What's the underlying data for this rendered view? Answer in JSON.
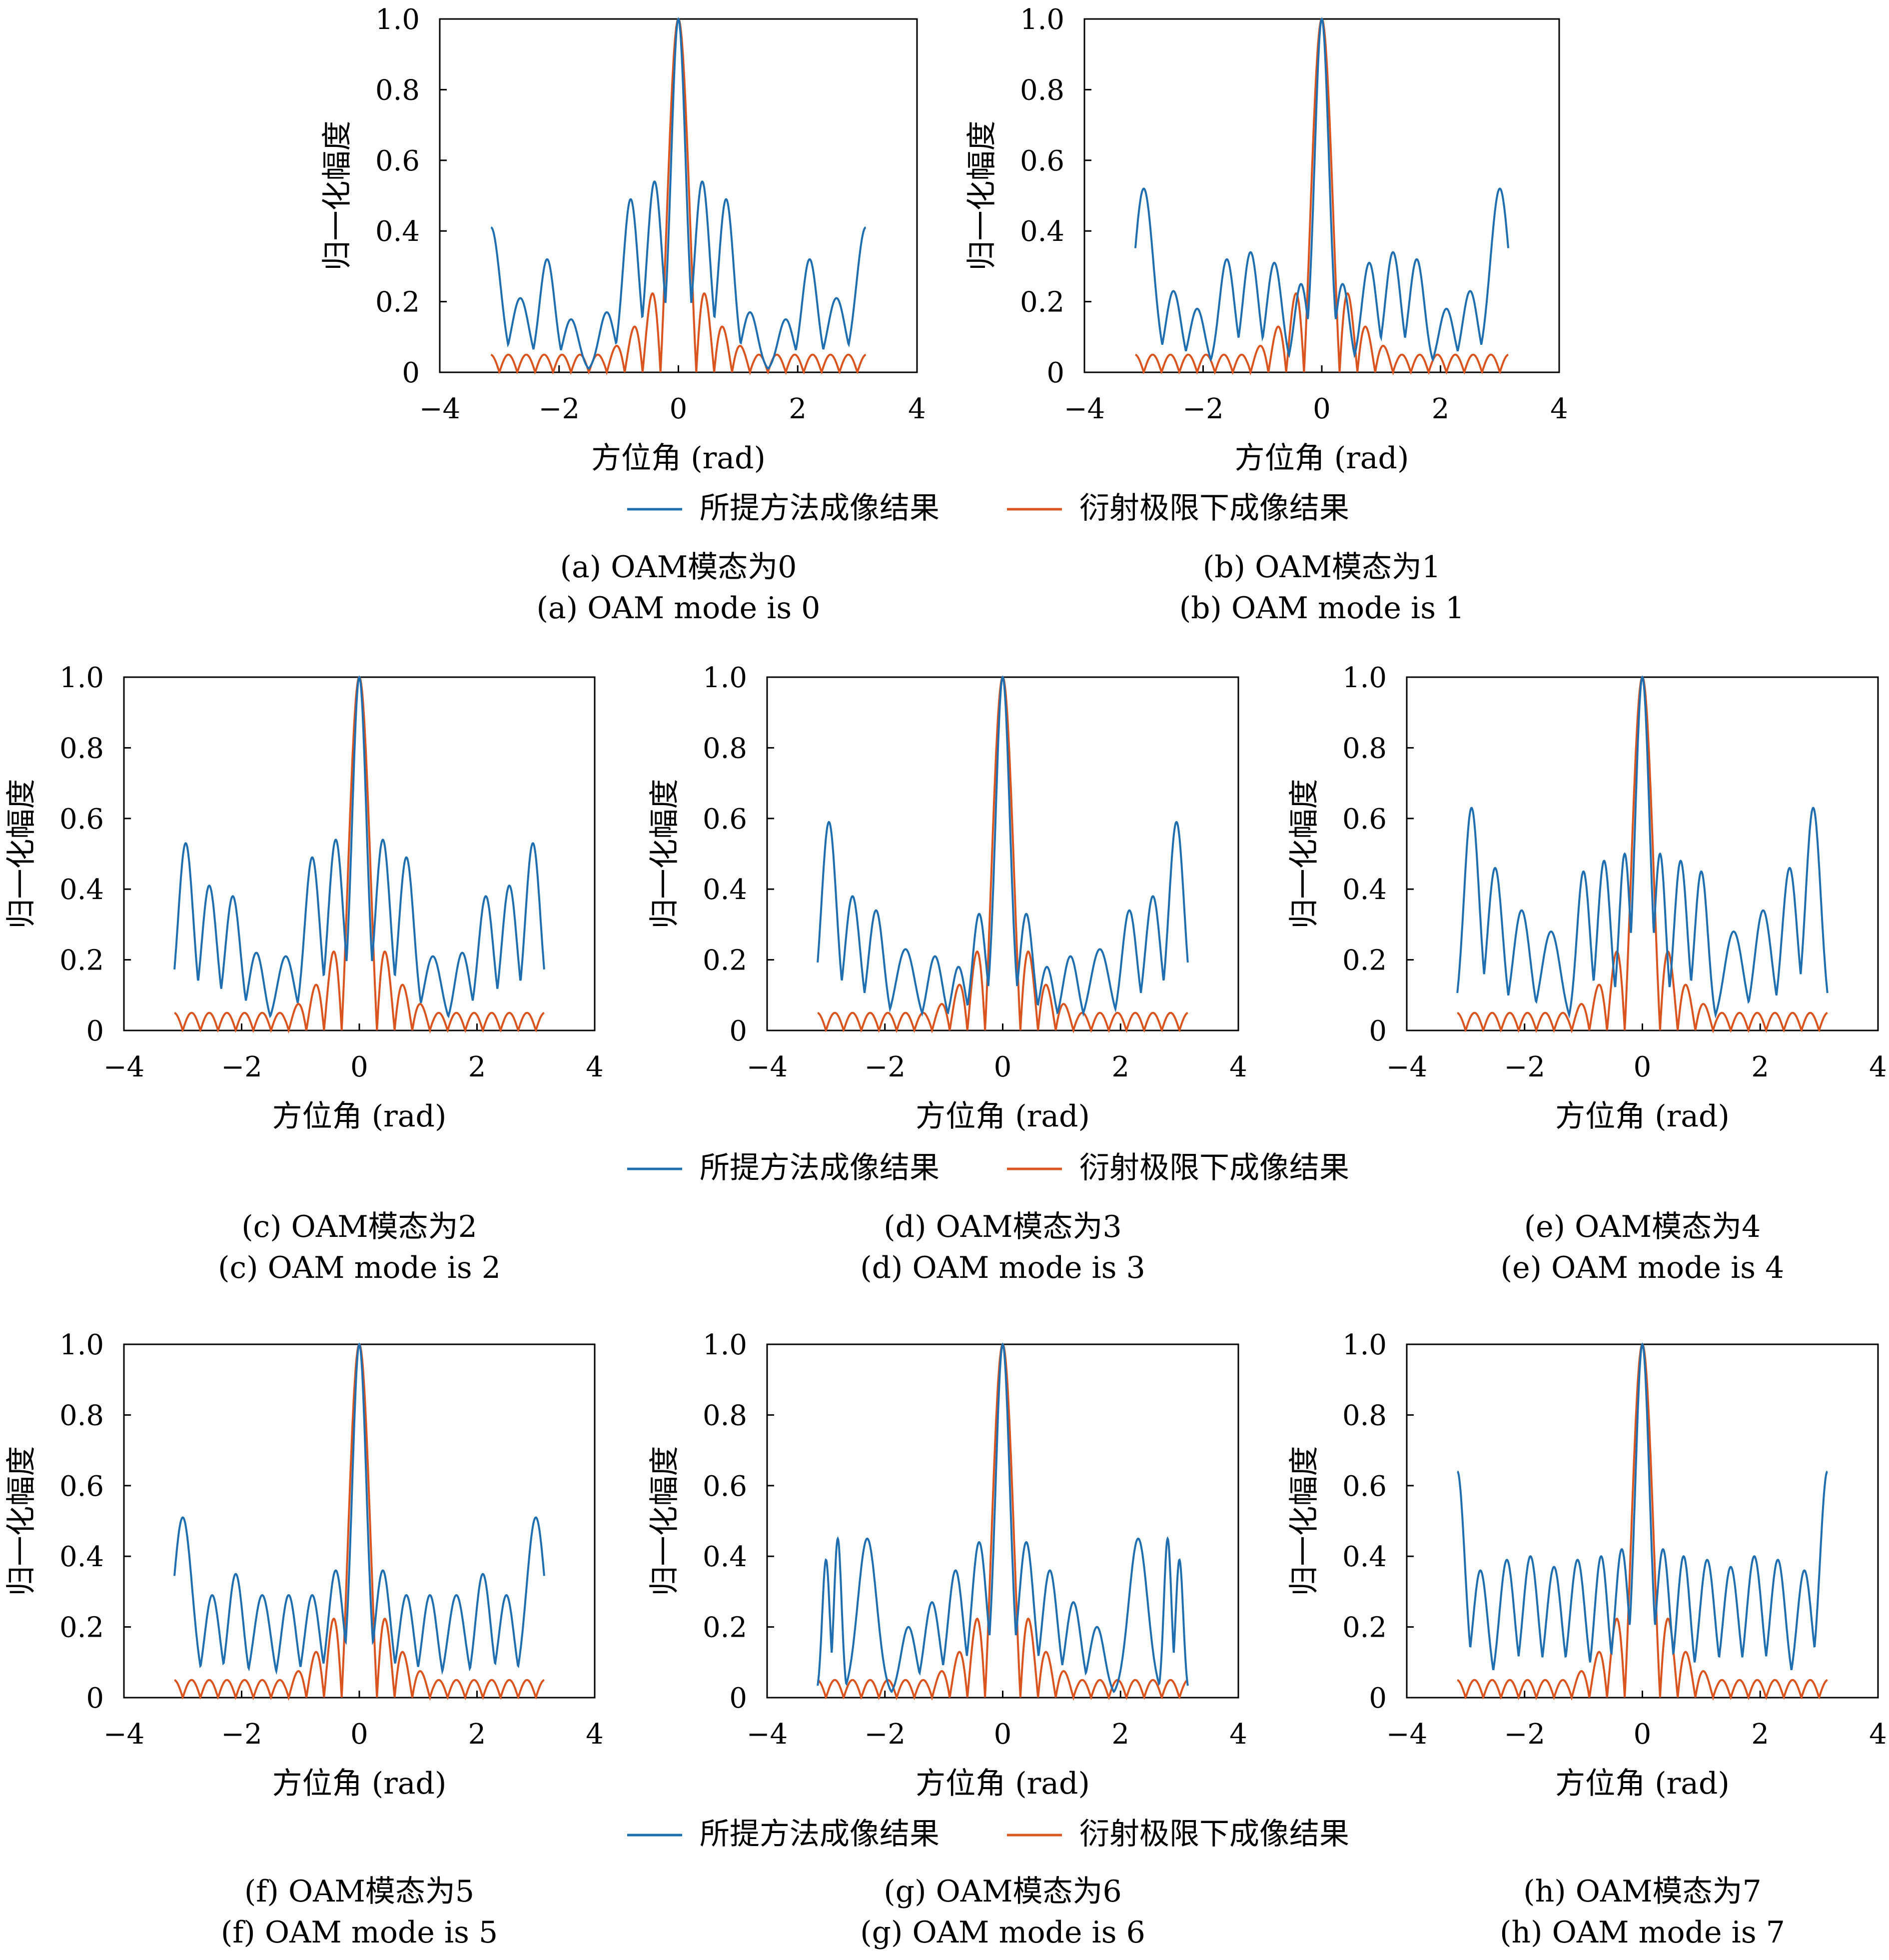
{
  "colors": {
    "proposed": "#1f6fb0",
    "diffraction": "#d9541e",
    "axis": "#000000"
  },
  "legend": {
    "proposed": "所提方法成像结果",
    "diffraction": "衍射极限下成像结果"
  },
  "chart_data": [
    {
      "type": "line",
      "id": "a",
      "oam_mode": 0,
      "caption_cn": "(a) OAM模态为0",
      "caption_en": "(a) OAM mode is 0",
      "xlabel": "方位角 (rad)",
      "ylabel": "归一化幅度",
      "xlim": [
        -4,
        4
      ],
      "ylim": [
        0,
        1
      ],
      "xticks": [
        "−4",
        "−2",
        "0",
        "2",
        "4"
      ],
      "yticks": [
        "0",
        "0.2",
        "0.4",
        "0.6",
        "0.8",
        "1.0"
      ],
      "series": [
        {
          "name": "所提方法成像结果",
          "peak_x": [
            -3.14,
            -2.65,
            -2.2,
            -1.8,
            -1.2,
            -0.8,
            -0.4,
            0,
            0.4,
            0.8,
            1.2,
            1.8,
            2.2,
            2.65,
            3.14
          ],
          "peak_y": [
            0.41,
            0.21,
            0.32,
            0.15,
            0.17,
            0.49,
            0.54,
            1.0,
            0.54,
            0.49,
            0.17,
            0.15,
            0.32,
            0.21,
            0.41
          ]
        },
        {
          "name": "衍射极限下成像结果",
          "main_lobe_halfwidth": 0.3,
          "sidelobe_peak": 0.22,
          "sidelobe_edge": 0.05
        }
      ]
    },
    {
      "type": "line",
      "id": "b",
      "oam_mode": 1,
      "caption_cn": "(b) OAM模态为1",
      "caption_en": "(b) OAM mode is 1",
      "xlabel": "方位角 (rad)",
      "ylabel": "归一化幅度",
      "xlim": [
        -4,
        4
      ],
      "ylim": [
        0,
        1
      ],
      "xticks": [
        "−4",
        "−2",
        "0",
        "2",
        "4"
      ],
      "yticks": [
        "0",
        "0.2",
        "0.4",
        "0.6",
        "0.8",
        "1.0"
      ],
      "series": [
        {
          "name": "所提方法成像结果",
          "peak_x": [
            -3.0,
            -2.5,
            -2.1,
            -1.6,
            -1.2,
            -0.8,
            -0.35,
            0,
            0.35,
            0.8,
            1.2,
            1.6,
            2.1,
            2.5,
            3.0
          ],
          "peak_y": [
            0.52,
            0.23,
            0.18,
            0.32,
            0.34,
            0.31,
            0.25,
            1.0,
            0.25,
            0.31,
            0.34,
            0.32,
            0.18,
            0.23,
            0.52
          ]
        },
        {
          "name": "衍射极限下成像结果",
          "main_lobe_halfwidth": 0.3,
          "sidelobe_peak": 0.22,
          "sidelobe_edge": 0.05
        }
      ]
    },
    {
      "type": "line",
      "id": "c",
      "oam_mode": 2,
      "caption_cn": "(c) OAM模态为2",
      "caption_en": "(c) OAM mode is 2",
      "xlabel": "方位角 (rad)",
      "ylabel": "归一化幅度",
      "xlim": [
        -4,
        4
      ],
      "ylim": [
        0,
        1
      ],
      "xticks": [
        "−4",
        "−2",
        "0",
        "2",
        "4"
      ],
      "yticks": [
        "0",
        "0.2",
        "0.4",
        "0.6",
        "0.8",
        "1.0"
      ],
      "series": [
        {
          "name": "所提方法成像结果",
          "peak_x": [
            -2.95,
            -2.55,
            -2.15,
            -1.75,
            -1.25,
            -0.8,
            -0.4,
            0,
            0.4,
            0.8,
            1.25,
            1.75,
            2.15,
            2.55,
            2.95
          ],
          "peak_y": [
            0.53,
            0.41,
            0.38,
            0.22,
            0.21,
            0.49,
            0.54,
            1.0,
            0.54,
            0.49,
            0.21,
            0.22,
            0.38,
            0.41,
            0.53
          ]
        },
        {
          "name": "衍射极限下成像结果",
          "main_lobe_halfwidth": 0.3,
          "sidelobe_peak": 0.22,
          "sidelobe_edge": 0.05
        }
      ]
    },
    {
      "type": "line",
      "id": "d",
      "oam_mode": 3,
      "caption_cn": "(d) OAM模态为3",
      "caption_en": "(d) OAM mode is 3",
      "xlabel": "方位角 (rad)",
      "ylabel": "归一化幅度",
      "xlim": [
        -4,
        4
      ],
      "ylim": [
        0,
        1
      ],
      "xticks": [
        "−4",
        "−2",
        "0",
        "2",
        "4"
      ],
      "yticks": [
        "0",
        "0.2",
        "0.4",
        "0.6",
        "0.8",
        "1.0"
      ],
      "series": [
        {
          "name": "所提方法成像结果",
          "peak_x": [
            -2.95,
            -2.55,
            -2.15,
            -1.65,
            -1.15,
            -0.75,
            -0.4,
            0,
            0.4,
            0.75,
            1.15,
            1.65,
            2.15,
            2.55,
            2.95
          ],
          "peak_y": [
            0.59,
            0.38,
            0.34,
            0.23,
            0.21,
            0.18,
            0.33,
            1.0,
            0.33,
            0.18,
            0.21,
            0.23,
            0.34,
            0.38,
            0.59
          ]
        },
        {
          "name": "衍射极限下成像结果",
          "main_lobe_halfwidth": 0.3,
          "sidelobe_peak": 0.22,
          "sidelobe_edge": 0.05
        }
      ]
    },
    {
      "type": "line",
      "id": "e",
      "oam_mode": 4,
      "caption_cn": "(e) OAM模态为4",
      "caption_en": "(e) OAM mode is 4",
      "xlabel": "方位角 (rad)",
      "ylabel": "归一化幅度",
      "xlim": [
        -4,
        4
      ],
      "ylim": [
        0,
        1
      ],
      "xticks": [
        "−4",
        "−2",
        "0",
        "2",
        "4"
      ],
      "yticks": [
        "0",
        "0.2",
        "0.4",
        "0.6",
        "0.8",
        "1.0"
      ],
      "series": [
        {
          "name": "所提方法成像结果",
          "peak_x": [
            -2.9,
            -2.5,
            -2.05,
            -1.55,
            -1.0,
            -0.65,
            -0.3,
            0,
            0.3,
            0.65,
            1.0,
            1.55,
            2.05,
            2.5,
            2.9
          ],
          "peak_y": [
            0.63,
            0.46,
            0.34,
            0.28,
            0.45,
            0.48,
            0.5,
            1.0,
            0.5,
            0.48,
            0.45,
            0.28,
            0.34,
            0.46,
            0.63
          ]
        },
        {
          "name": "衍射极限下成像结果",
          "main_lobe_halfwidth": 0.3,
          "sidelobe_peak": 0.22,
          "sidelobe_edge": 0.05
        }
      ]
    },
    {
      "type": "line",
      "id": "f",
      "oam_mode": 5,
      "caption_cn": "(f) OAM模态为5",
      "caption_en": "(f) OAM mode is 5",
      "xlabel": "方位角 (rad)",
      "ylabel": "归一化幅度",
      "xlim": [
        -4,
        4
      ],
      "ylim": [
        0,
        1
      ],
      "xticks": [
        "−4",
        "−2",
        "0",
        "2",
        "4"
      ],
      "yticks": [
        "0",
        "0.2",
        "0.4",
        "0.6",
        "0.8",
        "1.0"
      ],
      "series": [
        {
          "name": "所提方法成像结果",
          "peak_x": [
            -3.0,
            -2.5,
            -2.1,
            -1.65,
            -1.2,
            -0.8,
            -0.4,
            0,
            0.4,
            0.8,
            1.2,
            1.65,
            2.1,
            2.5,
            3.0
          ],
          "peak_y": [
            0.51,
            0.29,
            0.35,
            0.29,
            0.29,
            0.29,
            0.36,
            1.0,
            0.36,
            0.29,
            0.29,
            0.29,
            0.35,
            0.29,
            0.51
          ]
        },
        {
          "name": "衍射极限下成像结果",
          "main_lobe_halfwidth": 0.3,
          "sidelobe_peak": 0.22,
          "sidelobe_edge": 0.05
        }
      ]
    },
    {
      "type": "line",
      "id": "g",
      "oam_mode": 6,
      "caption_cn": "(g) OAM模态为6",
      "caption_en": "(g) OAM mode is 6",
      "xlabel": "方位角 (rad)",
      "ylabel": "归一化幅度",
      "xlim": [
        -4,
        4
      ],
      "ylim": [
        0,
        1
      ],
      "xticks": [
        "−4",
        "−2",
        "0",
        "2",
        "4"
      ],
      "yticks": [
        "0",
        "0.2",
        "0.4",
        "0.6",
        "0.8",
        "1.0"
      ],
      "series": [
        {
          "name": "所提方法成像结果",
          "peak_x": [
            -3.0,
            -2.8,
            -2.3,
            -1.6,
            -1.2,
            -0.8,
            -0.4,
            0,
            0.4,
            0.8,
            1.2,
            1.6,
            2.3,
            2.8,
            3.0
          ],
          "peak_y": [
            0.39,
            0.45,
            0.45,
            0.2,
            0.27,
            0.36,
            0.44,
            1.0,
            0.44,
            0.36,
            0.27,
            0.2,
            0.45,
            0.45,
            0.39
          ]
        },
        {
          "name": "衍射极限下成像结果",
          "main_lobe_halfwidth": 0.3,
          "sidelobe_peak": 0.22,
          "sidelobe_edge": 0.05
        }
      ]
    },
    {
      "type": "line",
      "id": "h",
      "oam_mode": 7,
      "caption_cn": "(h) OAM模态为7",
      "caption_en": "(h) OAM mode is 7",
      "xlabel": "方位角 (rad)",
      "ylabel": "归一化幅度",
      "xlim": [
        -4,
        4
      ],
      "ylim": [
        0,
        1
      ],
      "xticks": [
        "−4",
        "−2",
        "0",
        "2",
        "4"
      ],
      "yticks": [
        "0",
        "0.2",
        "0.4",
        "0.6",
        "0.8",
        "1.0"
      ],
      "series": [
        {
          "name": "所提方法成像结果",
          "peak_x": [
            -3.14,
            -2.75,
            -2.3,
            -1.9,
            -1.5,
            -1.1,
            -0.7,
            -0.35,
            0,
            0.35,
            0.7,
            1.1,
            1.5,
            1.9,
            2.3,
            2.75,
            3.14
          ],
          "peak_y": [
            0.64,
            0.36,
            0.39,
            0.4,
            0.37,
            0.39,
            0.4,
            0.42,
            1.0,
            0.42,
            0.4,
            0.39,
            0.37,
            0.4,
            0.39,
            0.36,
            0.64
          ]
        },
        {
          "name": "衍射极限下成像结果",
          "main_lobe_halfwidth": 0.3,
          "sidelobe_peak": 0.22,
          "sidelobe_edge": 0.05
        }
      ]
    }
  ]
}
